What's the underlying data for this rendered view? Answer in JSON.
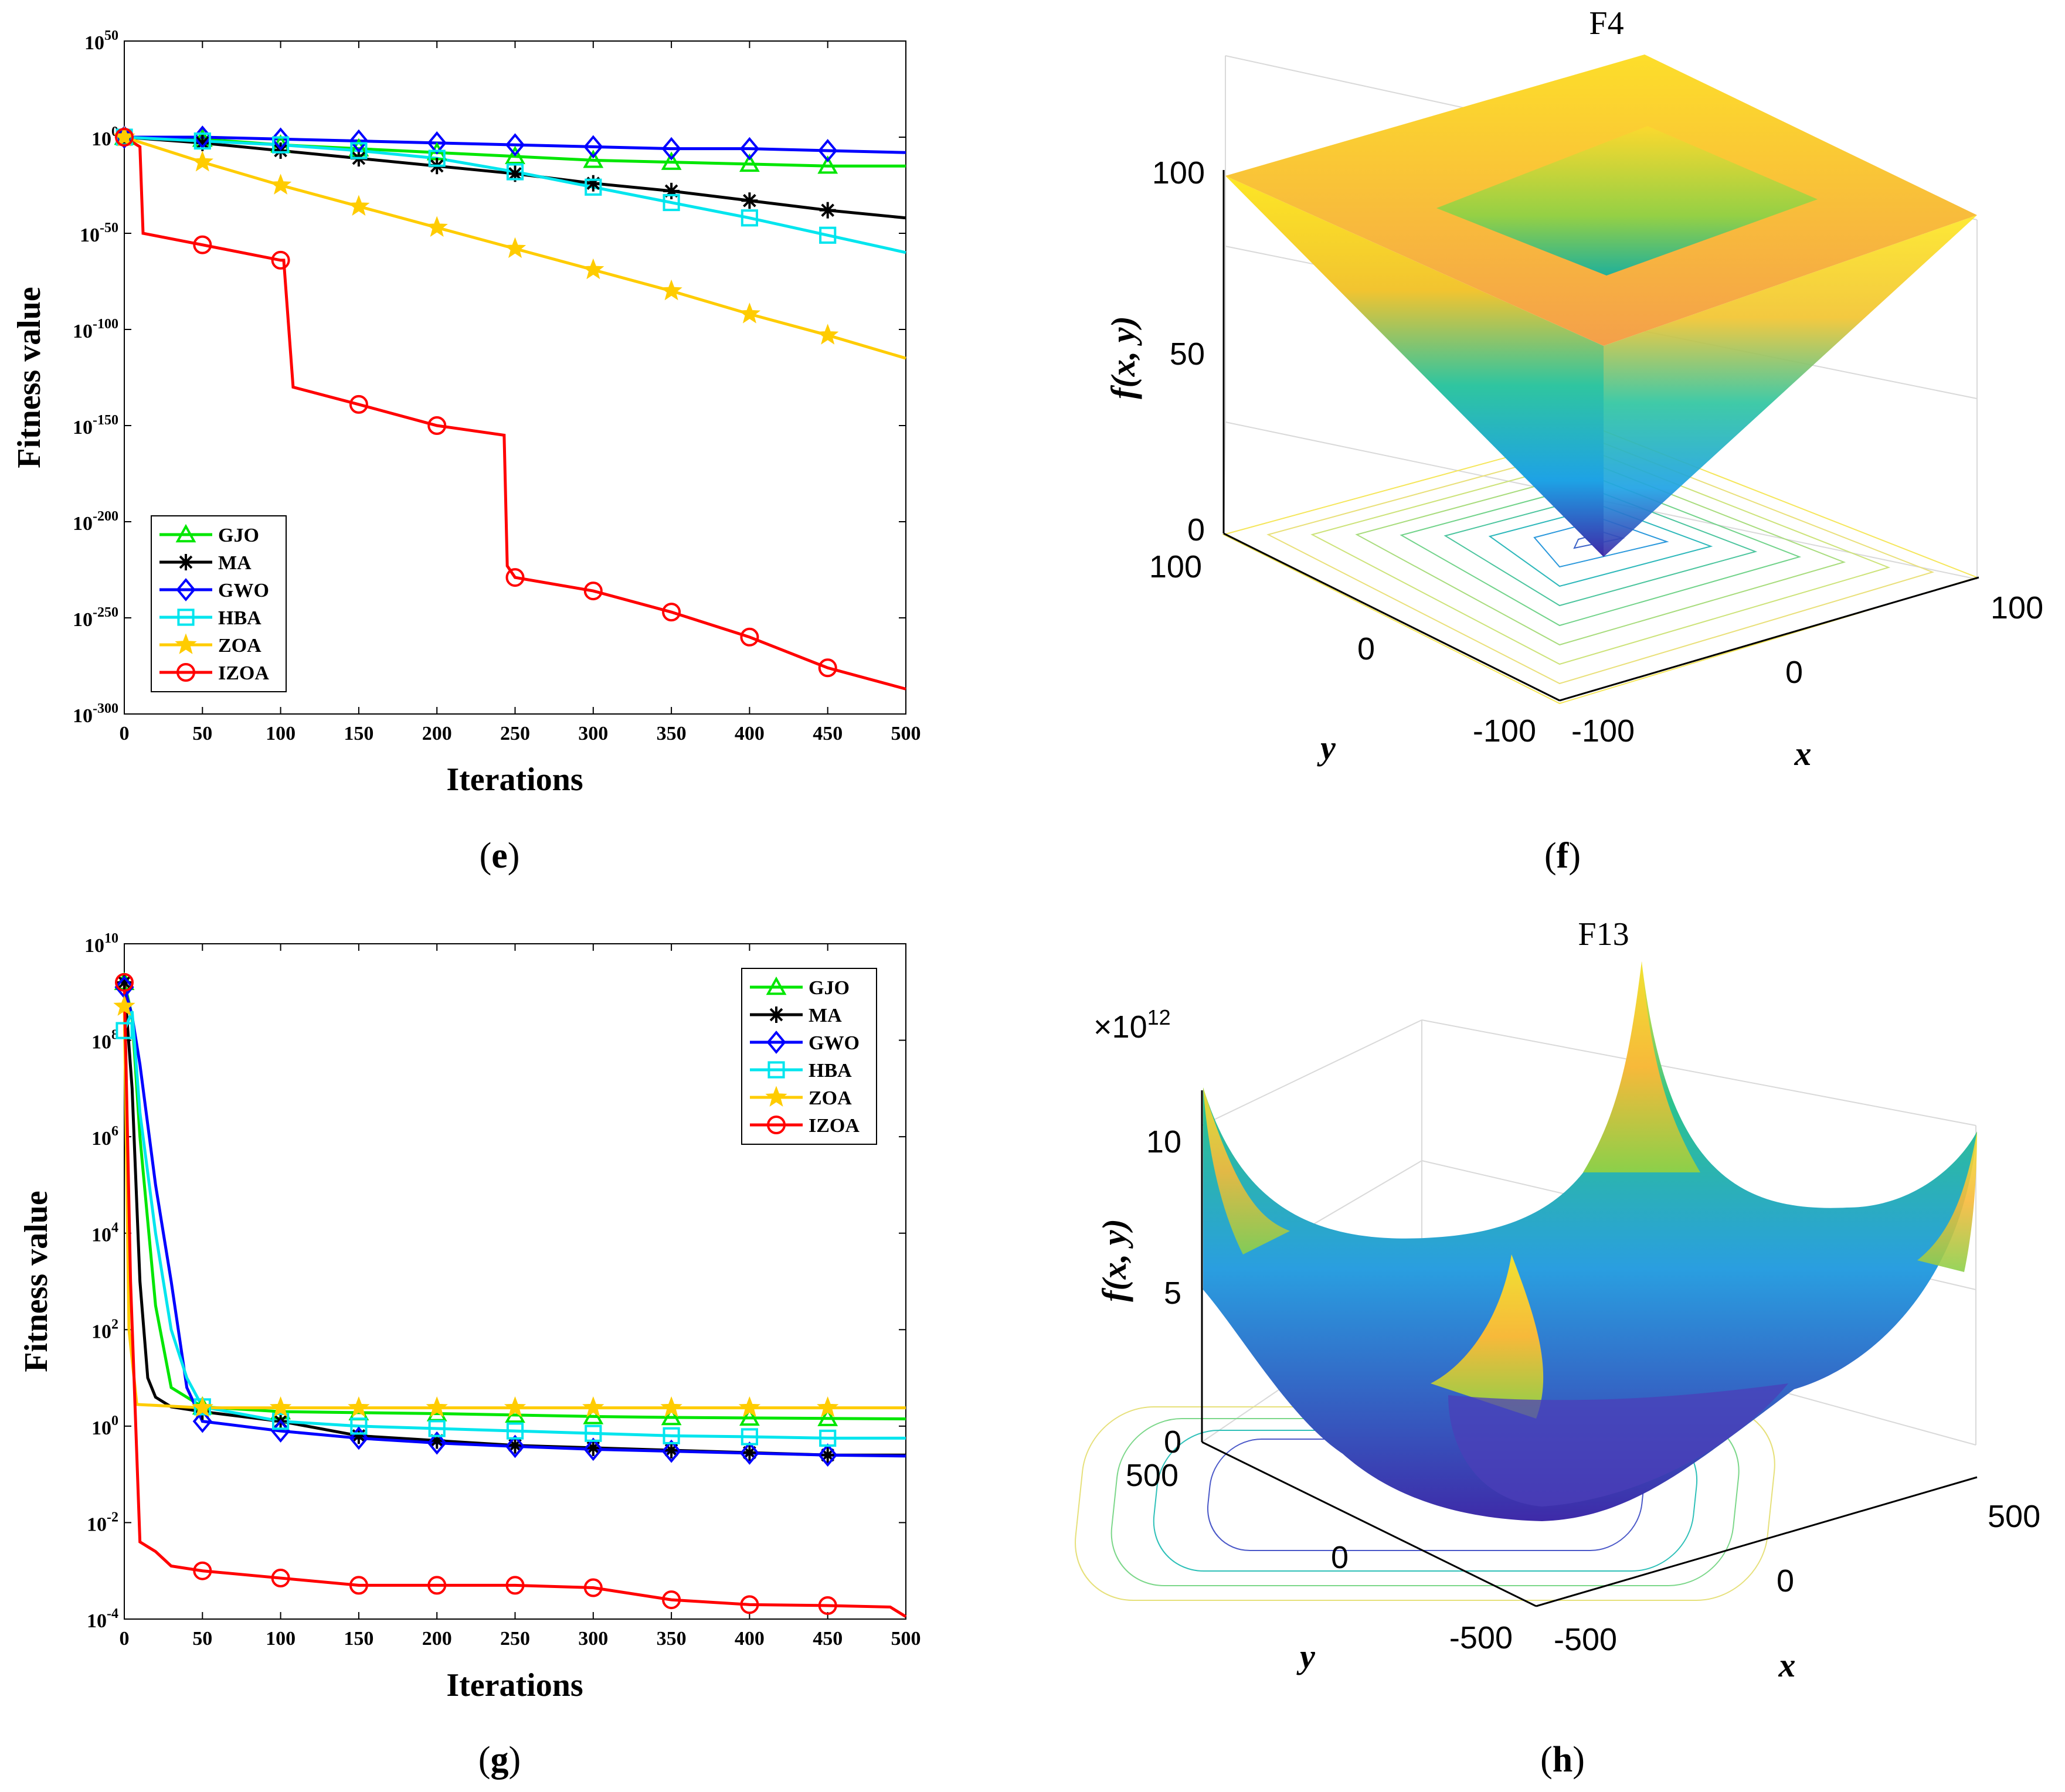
{
  "chart_data": [
    {
      "type": "line",
      "panel": "e",
      "xlabel": "Iterations",
      "ylabel": "Fitness value",
      "yscale": "log",
      "xlim": [
        0,
        500
      ],
      "ylim_exp": [
        -300,
        50
      ],
      "xticks": [
        "0",
        "50",
        "100",
        "150",
        "200",
        "250",
        "300",
        "350",
        "400",
        "450",
        "500"
      ],
      "yticks_exp": [
        "50",
        "0",
        "-50",
        "-100",
        "-150",
        "-200",
        "-250",
        "-300"
      ],
      "legend": "bottom-left",
      "series": [
        {
          "name": "GJO",
          "color": "#00e600",
          "marker": "triangle",
          "x": [
            0,
            50,
            100,
            150,
            200,
            250,
            300,
            350,
            400,
            450,
            500
          ],
          "log10": [
            0,
            -1,
            -4,
            -6,
            -8,
            -10,
            -12,
            -13,
            -14,
            -15,
            -15
          ]
        },
        {
          "name": "MA",
          "color": "#000000",
          "marker": "asterisk",
          "x": [
            0,
            50,
            100,
            150,
            200,
            250,
            300,
            350,
            400,
            450,
            500
          ],
          "log10": [
            0,
            -3,
            -7,
            -11,
            -15,
            -19,
            -24,
            -28,
            -33,
            -38,
            -42
          ]
        },
        {
          "name": "GWO",
          "color": "#0000ff",
          "marker": "diamond",
          "x": [
            0,
            50,
            100,
            150,
            200,
            250,
            300,
            350,
            400,
            450,
            500
          ],
          "log10": [
            0,
            0,
            -1,
            -2,
            -3,
            -4,
            -5,
            -6,
            -6,
            -7,
            -8
          ]
        },
        {
          "name": "HBA",
          "color": "#00e5ee",
          "marker": "square",
          "x": [
            0,
            50,
            100,
            150,
            200,
            250,
            300,
            350,
            400,
            450,
            500
          ],
          "log10": [
            0,
            -2,
            -4,
            -7,
            -11,
            -18,
            -26,
            -34,
            -42,
            -51,
            -60
          ]
        },
        {
          "name": "ZOA",
          "color": "#ffcc00",
          "marker": "star",
          "x": [
            0,
            50,
            100,
            150,
            200,
            250,
            300,
            350,
            400,
            450,
            500
          ],
          "log10": [
            0,
            -13,
            -25,
            -36,
            -47,
            -58,
            -69,
            -80,
            -92,
            -103,
            -115
          ]
        },
        {
          "name": "IZOA",
          "color": "#ff0000",
          "marker": "circle",
          "x": [
            0,
            10,
            12,
            50,
            100,
            102,
            108,
            150,
            200,
            243,
            245,
            250,
            300,
            350,
            400,
            450,
            500
          ],
          "log10": [
            0,
            -5,
            -50,
            -56,
            -64,
            -64,
            -130,
            -139,
            -150,
            -155,
            -223,
            -229,
            -236,
            -247,
            -260,
            -276,
            -287
          ]
        }
      ]
    },
    {
      "type": "surface",
      "panel": "f",
      "title": "F4",
      "zlabel": "f(x, y)",
      "xlabel": "x",
      "ylabel": "y",
      "zticks": [
        "0",
        "50",
        "100"
      ],
      "xticks": [
        "-100",
        "0",
        "100"
      ],
      "yticks": [
        "-100",
        "0",
        "100"
      ]
    },
    {
      "type": "line",
      "panel": "g",
      "xlabel": "Iterations",
      "ylabel": "Fitness value",
      "yscale": "log",
      "xlim": [
        0,
        500
      ],
      "ylim_exp": [
        -4,
        10
      ],
      "xticks": [
        "0",
        "50",
        "100",
        "150",
        "200",
        "250",
        "300",
        "350",
        "400",
        "450",
        "500"
      ],
      "yticks_exp": [
        "10",
        "8",
        "6",
        "4",
        "2",
        "0",
        "-2",
        "-4"
      ],
      "legend": "top-right",
      "series": [
        {
          "name": "GJO",
          "color": "#00e600",
          "marker": "triangle",
          "x": [
            0,
            5,
            10,
            20,
            30,
            50,
            100,
            150,
            200,
            250,
            300,
            350,
            400,
            450,
            500
          ],
          "log10": [
            9.2,
            8.5,
            6,
            2.5,
            0.8,
            0.4,
            0.3,
            0.28,
            0.26,
            0.23,
            0.2,
            0.18,
            0.17,
            0.16,
            0.15
          ]
        },
        {
          "name": "MA",
          "color": "#000000",
          "marker": "asterisk",
          "x": [
            0,
            5,
            10,
            15,
            20,
            30,
            50,
            100,
            150,
            200,
            250,
            300,
            350,
            400,
            450,
            500
          ],
          "log10": [
            9.2,
            7,
            3,
            1,
            0.6,
            0.4,
            0.3,
            0.1,
            -0.2,
            -0.3,
            -0.4,
            -0.45,
            -0.5,
            -0.55,
            -0.6,
            -0.6
          ]
        },
        {
          "name": "GWO",
          "color": "#0000ff",
          "marker": "diamond",
          "x": [
            0,
            5,
            10,
            20,
            30,
            40,
            50,
            100,
            150,
            200,
            250,
            300,
            350,
            400,
            450,
            500
          ],
          "log10": [
            9.1,
            8.5,
            7.5,
            5,
            3,
            0.8,
            0.1,
            -0.1,
            -0.25,
            -0.35,
            -0.42,
            -0.48,
            -0.52,
            -0.56,
            -0.6,
            -0.62
          ]
        },
        {
          "name": "HBA",
          "color": "#00e5ee",
          "marker": "square",
          "x": [
            0,
            5,
            10,
            20,
            30,
            40,
            50,
            100,
            150,
            200,
            250,
            300,
            350,
            400,
            450,
            500
          ],
          "log10": [
            8.2,
            8.6,
            6.5,
            4,
            2,
            1,
            0.4,
            0.1,
            0,
            -0.05,
            -0.1,
            -0.15,
            -0.2,
            -0.22,
            -0.25,
            -0.25
          ]
        },
        {
          "name": "ZOA",
          "color": "#ffcc00",
          "marker": "star",
          "x": [
            0,
            3,
            8,
            50,
            100,
            150,
            200,
            250,
            300,
            350,
            400,
            450,
            500
          ],
          "log10": [
            8.7,
            2,
            0.45,
            0.38,
            0.38,
            0.38,
            0.38,
            0.38,
            0.38,
            0.38,
            0.38,
            0.38,
            0.38
          ]
        },
        {
          "name": "IZOA",
          "color": "#ff0000",
          "marker": "circle",
          "x": [
            0,
            4,
            10,
            20,
            30,
            50,
            100,
            150,
            200,
            250,
            300,
            350,
            400,
            450,
            490,
            500
          ],
          "log10": [
            9.2,
            3,
            -2.4,
            -2.6,
            -2.9,
            -3,
            -3.15,
            -3.3,
            -3.3,
            -3.3,
            -3.35,
            -3.6,
            -3.7,
            -3.72,
            -3.75,
            -3.95
          ]
        }
      ]
    },
    {
      "type": "surface",
      "panel": "h",
      "title": "F13",
      "scale_label": "×10",
      "scale_exp": "12",
      "zlabel": "f(x, y)",
      "xlabel": "x",
      "ylabel": "y",
      "zticks": [
        "0",
        "5",
        "10"
      ],
      "xticks": [
        "-500",
        "0",
        "500"
      ],
      "yticks": [
        "-500",
        "0",
        "500"
      ]
    }
  ],
  "captions": {
    "e": "e",
    "f": "f",
    "g": "g",
    "h": "h"
  }
}
